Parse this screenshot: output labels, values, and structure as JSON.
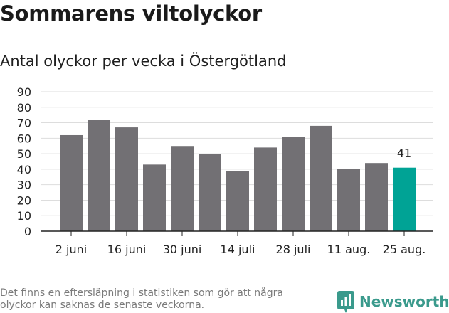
{
  "title": "Sommarens viltolyckor",
  "subtitle": "Antal olyckor per vecka i Östergötland",
  "footnote": "Det finns en eftersläpning i statistiken som gör att några olyckor kan saknas de senaste veckorna.",
  "brand": {
    "name": "Newsworthy",
    "icon": "newsworthy-logo-icon"
  },
  "colors": {
    "bar": "#727074",
    "highlight": "#00a395",
    "grid": "#dddddd",
    "brand": "#3a9a8c"
  },
  "chart_data": {
    "type": "bar",
    "values": [
      62,
      72,
      67,
      43,
      55,
      50,
      39,
      54,
      61,
      68,
      40,
      44,
      41
    ],
    "highlight_index": 12,
    "data_labels": [
      {
        "index": 12,
        "text": "41"
      }
    ],
    "x_tick_labels": [
      {
        "index": 0,
        "text": "2 juni"
      },
      {
        "index": 2,
        "text": "16 juni"
      },
      {
        "index": 4,
        "text": "30 juni"
      },
      {
        "index": 6,
        "text": "14 juli"
      },
      {
        "index": 8,
        "text": "28 juli"
      },
      {
        "index": 10,
        "text": "11 aug."
      },
      {
        "index": 12,
        "text": "25 aug."
      }
    ],
    "y_ticks": [
      "0",
      "10",
      "20",
      "30",
      "40",
      "50",
      "60",
      "70",
      "80",
      "90"
    ],
    "ylim": [
      0,
      90
    ],
    "grid": true
  }
}
